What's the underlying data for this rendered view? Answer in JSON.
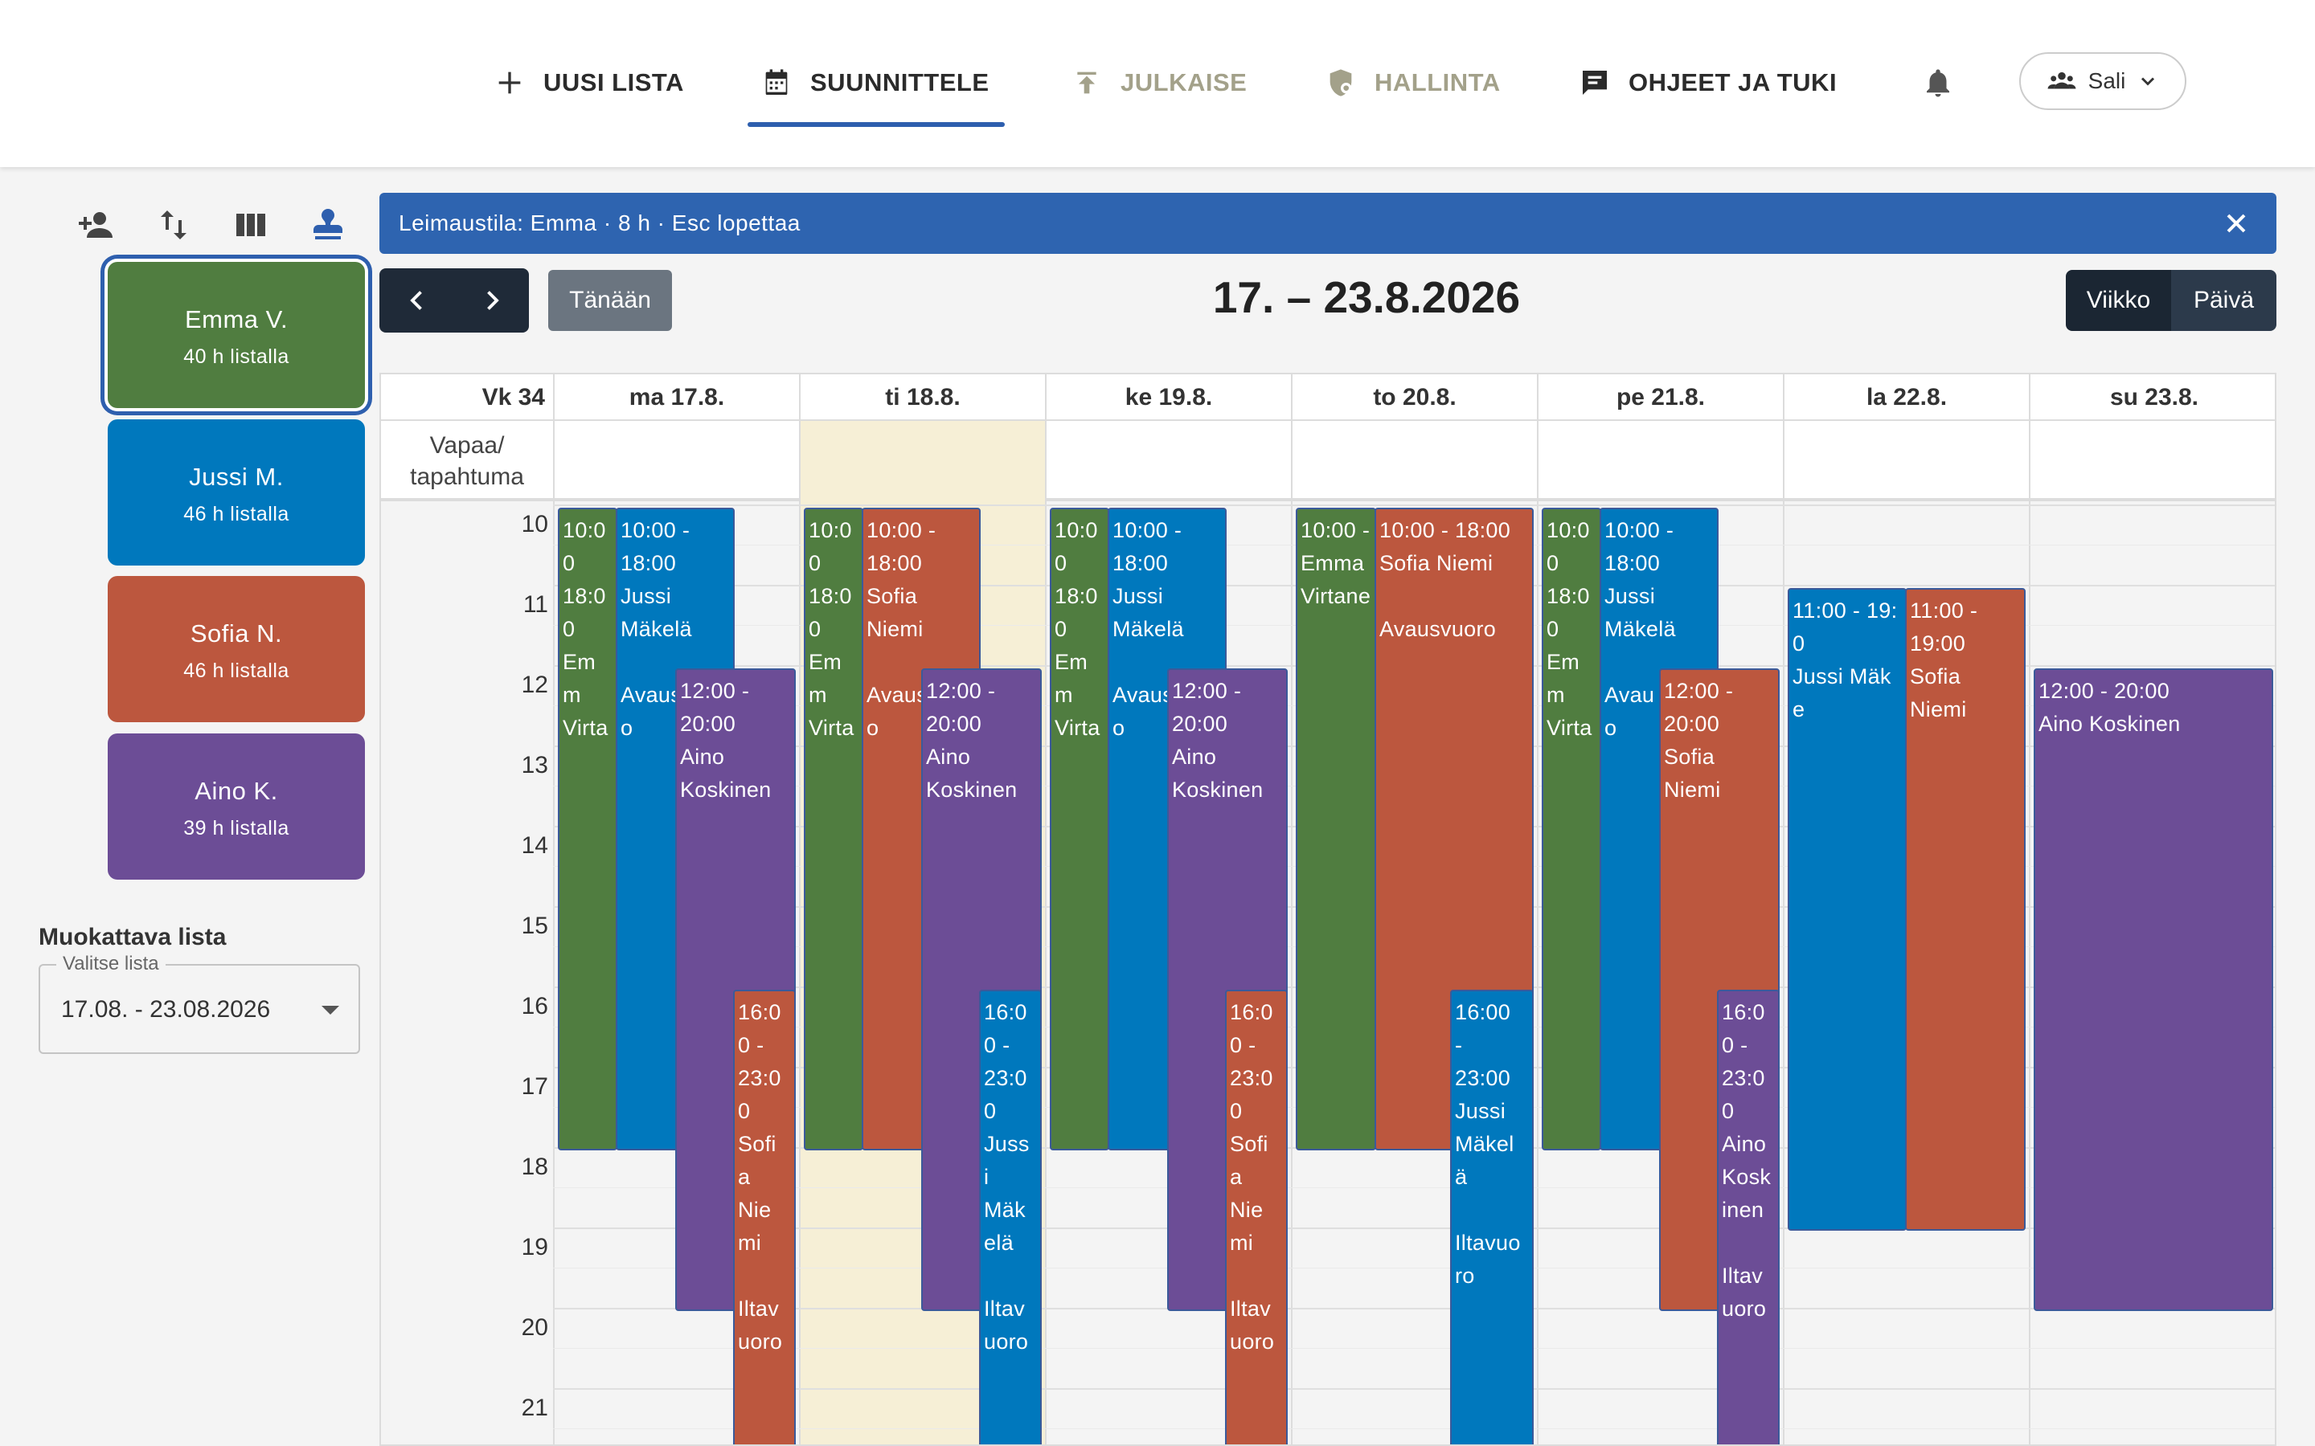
{
  "nav": {
    "items": [
      {
        "label": "UUSI LISTA",
        "icon": "plus-icon"
      },
      {
        "label": "SUUNNITTELE",
        "icon": "calendar-icon"
      },
      {
        "label": "JULKAISE",
        "icon": "publish-icon"
      },
      {
        "label": "HALLINTA",
        "icon": "shield-settings-icon"
      },
      {
        "label": "OHJEET JA TUKI",
        "icon": "chat-icon"
      }
    ],
    "user_label": "Sali"
  },
  "employees": [
    {
      "name": "Emma V.",
      "hours": "40 h listalla",
      "color": "#507d40"
    },
    {
      "name": "Jussi M.",
      "hours": "46 h listalla",
      "color": "#0078bd"
    },
    {
      "name": "Sofia N.",
      "hours": "46 h listalla",
      "color": "#bc573e"
    },
    {
      "name": "Aino K.",
      "hours": "39 h listalla",
      "color": "#6c4d96"
    }
  ],
  "list_select": {
    "heading": "Muokattava lista",
    "legend": "Valitse lista",
    "value": "17.08. - 23.08.2026"
  },
  "banner": {
    "text": "Leimaustila: Emma · 8 h · Esc lopettaa"
  },
  "toolbar": {
    "today": "Tänään",
    "range": "17. – 23.8.2026",
    "view_week": "Viikko",
    "view_day": "Päivä"
  },
  "calendar": {
    "week_label": "Vk 34",
    "allday_label": "Vapaa/ tapahtuma",
    "days": [
      "ma 17.8.",
      "ti 18.8.",
      "ke 19.8.",
      "to 20.8.",
      "pe 21.8.",
      "la 22.8.",
      "su 23.8."
    ],
    "hours": [
      "10",
      "11",
      "12",
      "13",
      "14",
      "15",
      "16",
      "17",
      "18",
      "19",
      "20",
      "21"
    ]
  },
  "colors": {
    "accent": "#2e5fae",
    "green": "#507d40",
    "blue": "#0078bd",
    "red": "#bc573e",
    "purple": "#6c4d96",
    "today_highlight": "#f6efd6"
  }
}
